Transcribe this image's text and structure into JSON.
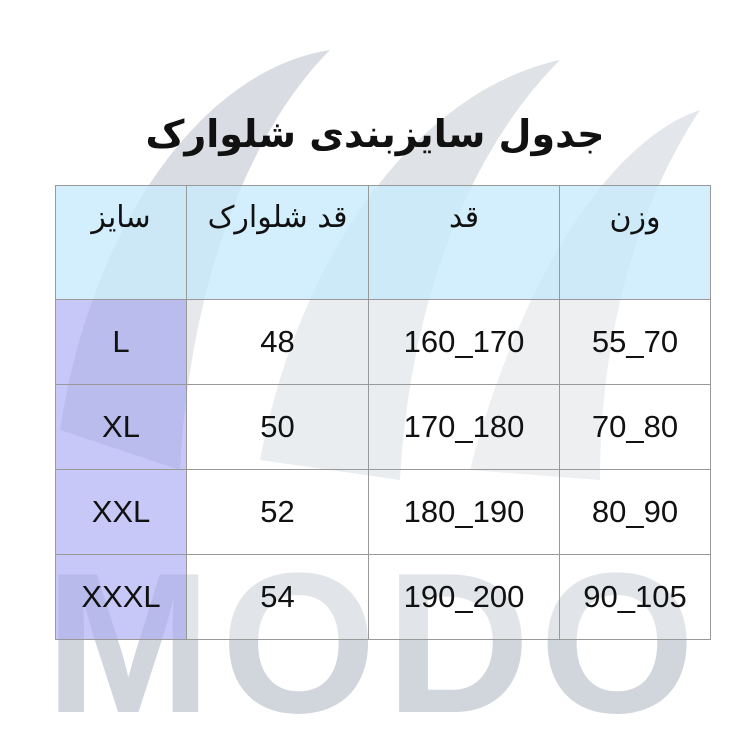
{
  "title": "جدول سایزبندی شلوارک",
  "watermark": "MODO",
  "colors": {
    "header_bg": "#c8ebfc",
    "size_col_bg": "#aaaaf5",
    "watermark": "#b4bcc8"
  },
  "table": {
    "headers": [
      "سایز",
      "قد شلوارک",
      "قد",
      "وزن"
    ],
    "rows": [
      [
        "L",
        "48",
        "160_170",
        "55_70"
      ],
      [
        "XL",
        "50",
        "170_180",
        "70_80"
      ],
      [
        "XXL",
        "52",
        "180_190",
        "80_90"
      ],
      [
        "XXXL",
        "54",
        "190_200",
        "90_105"
      ]
    ]
  }
}
